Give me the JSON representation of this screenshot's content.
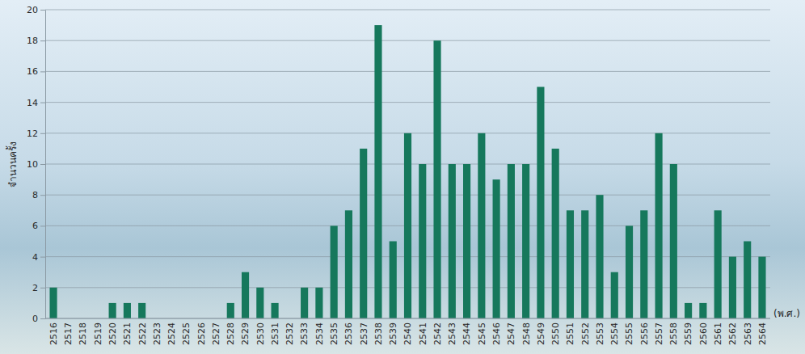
{
  "chart_data": {
    "type": "bar",
    "y_label": "จำนวนครั้ง",
    "x_label": "(พ.ศ.)",
    "categories": [
      "2516",
      "2517",
      "2518",
      "2519",
      "2520",
      "2521",
      "2522",
      "2523",
      "2524",
      "2525",
      "2526",
      "2527",
      "2528",
      "2529",
      "2530",
      "2531",
      "2532",
      "2533",
      "2534",
      "2535",
      "2536",
      "2537",
      "2538",
      "2539",
      "2540",
      "2541",
      "2542",
      "2543",
      "2544",
      "2545",
      "2546",
      "2547",
      "2548",
      "2549",
      "2550",
      "2551",
      "2552",
      "2553",
      "2554",
      "2555",
      "2556",
      "2557",
      "2558",
      "2559",
      "2560",
      "2561",
      "2562",
      "2563",
      "2564"
    ],
    "values": [
      2,
      0,
      0,
      0,
      1,
      1,
      1,
      0,
      0,
      0,
      0,
      0,
      1,
      3,
      2,
      1,
      0,
      2,
      2,
      6,
      7,
      11,
      19,
      5,
      12,
      10,
      18,
      10,
      10,
      12,
      9,
      10,
      10,
      15,
      11,
      7,
      7,
      8,
      3,
      6,
      7,
      12,
      10,
      1,
      1,
      7,
      4,
      5,
      4
    ],
    "color": "#16785c",
    "ylim": [
      0,
      20
    ],
    "yticks": [
      0,
      2,
      4,
      6,
      8,
      10,
      12,
      14,
      16,
      18,
      20
    ],
    "grid": true
  }
}
